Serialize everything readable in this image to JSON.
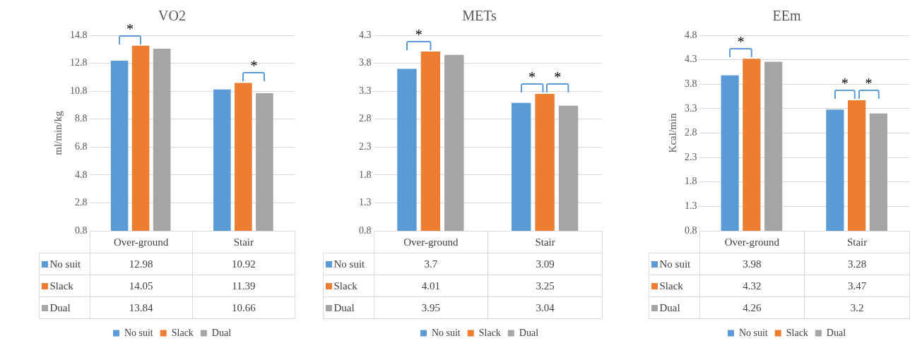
{
  "chart_data": [
    {
      "type": "bar",
      "title": "VO2",
      "ylabel": "ml/min/kg",
      "categories": [
        "Over-ground",
        "Stair"
      ],
      "series": [
        {
          "name": "No suit",
          "color": "#5b9bd5",
          "values": [
            12.98,
            10.92
          ]
        },
        {
          "name": "Slack",
          "color": "#ed7d31",
          "values": [
            14.05,
            11.39
          ]
        },
        {
          "name": "Dual",
          "color": "#a5a5a5",
          "values": [
            13.84,
            10.66
          ]
        }
      ],
      "ylim": [
        0.8,
        14.8
      ],
      "yticks": [
        0.8,
        2.8,
        4.8,
        6.8,
        8.8,
        10.8,
        12.8,
        14.8
      ],
      "grid": "y",
      "legend": "bottom",
      "data_labels": true,
      "annotations": [
        "*",
        "*"
      ]
    },
    {
      "type": "bar",
      "title": "METs",
      "categories": [
        "Over-ground",
        "Stair"
      ],
      "series": [
        {
          "name": "No suit",
          "color": "#5b9bd5",
          "values": [
            3.7,
            3.09
          ]
        },
        {
          "name": "Slack",
          "color": "#ed7d31",
          "values": [
            4.01,
            3.25
          ]
        },
        {
          "name": "Dual",
          "color": "#a5a5a5",
          "values": [
            3.95,
            3.04
          ]
        }
      ],
      "ylim": [
        0.8,
        4.3
      ],
      "yticks": [
        0.8,
        1.3,
        1.8,
        2.3,
        2.8,
        3.3,
        3.8,
        4.3
      ],
      "grid": "y",
      "legend": "bottom",
      "data_labels": true,
      "annotations": [
        "*",
        "*",
        "*"
      ]
    },
    {
      "type": "bar",
      "title": "EEm",
      "ylabel": "Kcal/min",
      "categories": [
        "Over-ground",
        "Stair"
      ],
      "series": [
        {
          "name": "No suit",
          "color": "#5b9bd5",
          "values": [
            3.98,
            3.28
          ]
        },
        {
          "name": "Slack",
          "color": "#ed7d31",
          "values": [
            4.32,
            3.47
          ]
        },
        {
          "name": "Dual",
          "color": "#a5a5a5",
          "values": [
            4.26,
            3.2
          ]
        }
      ],
      "ylim": [
        0.8,
        4.8
      ],
      "yticks": [
        0.8,
        1.3,
        1.8,
        2.3,
        2.8,
        3.3,
        3.8,
        4.3,
        4.8
      ],
      "grid": "y",
      "legend": "bottom",
      "data_labels": true,
      "annotations": [
        "*",
        "*",
        "*"
      ]
    }
  ]
}
